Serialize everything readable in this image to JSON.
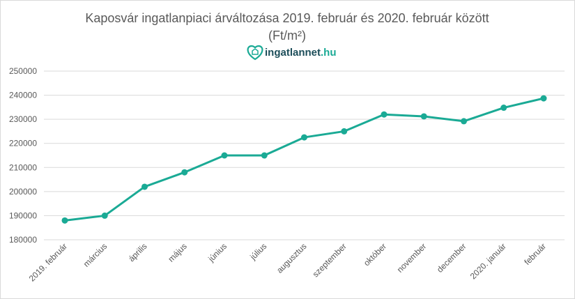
{
  "chart_data": {
    "type": "line",
    "title": "Kaposvár ingatlanpiaci árváltozása 2019. február és 2020. február között",
    "subtitle": "(Ft/m²)",
    "logo_text": {
      "main": "ingatlannet",
      "suffix": ".hu"
    },
    "categories": [
      "2019. február",
      "március",
      "április",
      "május",
      "június",
      "július",
      "augusztus",
      "szeptember",
      "október",
      "november",
      "december",
      "2020. január",
      "február"
    ],
    "series": [
      {
        "name": "Ft/m²",
        "values": [
          188000,
          190000,
          202000,
          208000,
          215000,
          215000,
          222500,
          225000,
          232000,
          231200,
          229200,
          234800,
          238700
        ]
      }
    ],
    "yticks": [
      "180000",
      "190000",
      "200000",
      "210000",
      "220000",
      "230000",
      "240000",
      "250000"
    ],
    "ylim": [
      180000,
      250000
    ],
    "xlabel": "",
    "ylabel": "",
    "grid": true,
    "legend": "none",
    "colors": {
      "line": "#1aaa95",
      "grid": "#d9d9d9",
      "text": "#595959",
      "logo_dark": "#1d4e5a",
      "logo_accent": "#1aaa95"
    }
  }
}
